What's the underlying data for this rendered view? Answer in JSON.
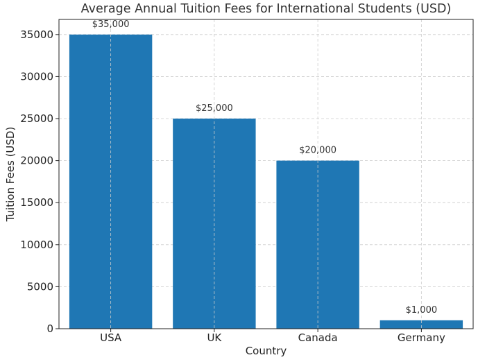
{
  "chart_data": {
    "type": "bar",
    "title": "Average Annual Tuition Fees for International Students (USD)",
    "xlabel": "Country",
    "ylabel": "Tuition Fees (USD)",
    "categories": [
      "USA",
      "UK",
      "Canada",
      "Germany"
    ],
    "values": [
      35000,
      25000,
      20000,
      1000
    ],
    "data_labels": [
      "$35,000",
      "$25,000",
      "$20,000",
      "$1,000"
    ],
    "ylim": [
      0,
      36800
    ],
    "yticks": [
      0,
      5000,
      10000,
      15000,
      20000,
      25000,
      30000,
      35000
    ],
    "grid": true,
    "bar_color": "#1f77b4",
    "grid_color": "#cccccc"
  }
}
